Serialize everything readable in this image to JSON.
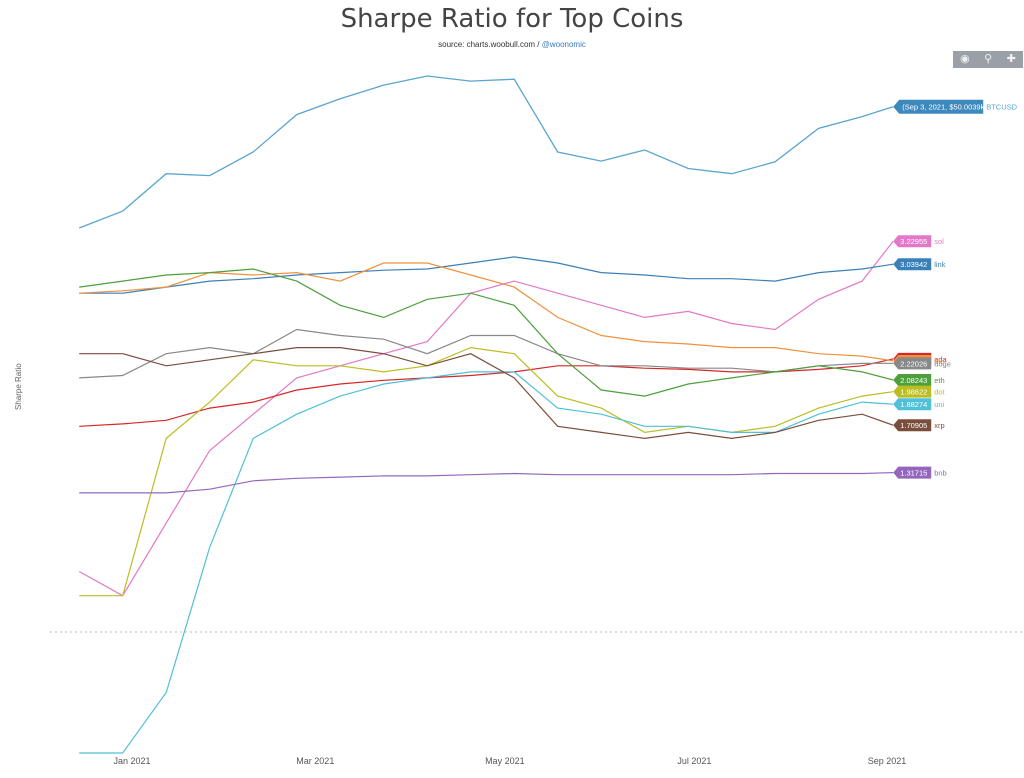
{
  "header": {
    "title": "Sharpe Ratio for Top Coins",
    "source_prefix": "source: charts.woobull.com / ",
    "source_handle": "@woonomic"
  },
  "modebar": {
    "icons": [
      "camera-icon",
      "zoom-icon",
      "pan-icon"
    ]
  },
  "chart_data": {
    "type": "line",
    "title": "Sharpe Ratio for Top Coins",
    "ylabel": "Sharpe Ratio",
    "xlabel": "",
    "x_ticks": [
      "Jan 2021",
      "Mar 2021",
      "May 2021",
      "Jul 2021",
      "Sep 2021"
    ],
    "x": [
      "2020-12-15",
      "2020-12-29",
      "2021-01-12",
      "2021-01-26",
      "2021-02-09",
      "2021-02-23",
      "2021-03-09",
      "2021-03-23",
      "2021-04-06",
      "2021-04-20",
      "2021-05-04",
      "2021-05-18",
      "2021-06-01",
      "2021-06-15",
      "2021-06-29",
      "2021-07-13",
      "2021-07-27",
      "2021-08-10",
      "2021-08-24",
      "2021-09-03"
    ],
    "zero_line": 0,
    "grid": false,
    "btc_price": {
      "name": "BTCUSD",
      "color": "#5aa5cf",
      "tooltip": "(Sep 3, 2021, $50.0039k)",
      "values": [
        19200,
        23500,
        33000,
        32500,
        38500,
        48000,
        52000,
        55500,
        57800,
        56500,
        57000,
        38500,
        36200,
        39000,
        34300,
        33000,
        36000,
        44500,
        47500,
        50004
      ]
    },
    "series": [
      {
        "name": "sol",
        "label": "3.22955",
        "color": "#e378c8",
        "values": [
          0.5,
          0.3,
          0.9,
          1.5,
          1.8,
          2.1,
          2.2,
          2.3,
          2.4,
          2.8,
          2.9,
          2.8,
          2.7,
          2.6,
          2.65,
          2.55,
          2.5,
          2.75,
          2.9,
          3.22955
        ]
      },
      {
        "name": "link",
        "label": "3.03942",
        "color": "#3a80b8",
        "values": [
          2.8,
          2.8,
          2.85,
          2.9,
          2.92,
          2.95,
          2.97,
          2.99,
          3.0,
          3.05,
          3.1,
          3.05,
          2.97,
          2.95,
          2.92,
          2.92,
          2.9,
          2.97,
          3.0,
          3.03942
        ]
      },
      {
        "name": "ada",
        "label": "2.2571",
        "color": "#d62728",
        "values": [
          1.7,
          1.72,
          1.75,
          1.85,
          1.9,
          2.0,
          2.05,
          2.08,
          2.1,
          2.12,
          2.15,
          2.2,
          2.2,
          2.18,
          2.17,
          2.15,
          2.15,
          2.17,
          2.2,
          2.2571
        ]
      },
      {
        "name": "btc",
        "label": "2.2401",
        "color": "#f0913f",
        "values": [
          2.8,
          2.82,
          2.85,
          2.97,
          2.95,
          2.97,
          2.9,
          3.05,
          3.05,
          2.95,
          2.85,
          2.6,
          2.45,
          2.4,
          2.38,
          2.35,
          2.35,
          2.3,
          2.28,
          2.2401
        ]
      },
      {
        "name": "doge",
        "label": "2.22026",
        "color": "#888888",
        "values": [
          2.1,
          2.12,
          2.3,
          2.35,
          2.3,
          2.5,
          2.45,
          2.42,
          2.3,
          2.45,
          2.45,
          2.3,
          2.2,
          2.2,
          2.18,
          2.18,
          2.15,
          2.2,
          2.22,
          2.22026
        ]
      },
      {
        "name": "eth",
        "label": "2.08243",
        "color": "#4e9f3d",
        "values": [
          2.85,
          2.9,
          2.95,
          2.97,
          3.0,
          2.9,
          2.7,
          2.6,
          2.75,
          2.8,
          2.7,
          2.3,
          2.0,
          1.95,
          2.05,
          2.1,
          2.15,
          2.2,
          2.15,
          2.08243
        ]
      },
      {
        "name": "dot",
        "label": "1.98622",
        "color": "#bcbd22",
        "values": [
          0.3,
          0.3,
          1.6,
          1.9,
          2.25,
          2.2,
          2.2,
          2.15,
          2.2,
          2.35,
          2.3,
          1.95,
          1.85,
          1.65,
          1.7,
          1.65,
          1.7,
          1.85,
          1.95,
          1.98622
        ]
      },
      {
        "name": "uni",
        "label": "1.88274",
        "color": "#4fc0d8",
        "values": [
          -1.0,
          -1.0,
          -0.5,
          0.7,
          1.6,
          1.8,
          1.95,
          2.05,
          2.1,
          2.15,
          2.15,
          1.85,
          1.8,
          1.7,
          1.7,
          1.65,
          1.65,
          1.8,
          1.9,
          1.88274
        ]
      },
      {
        "name": "xrp",
        "label": "1.70905",
        "color": "#7b4e3c",
        "values": [
          2.3,
          2.3,
          2.2,
          2.25,
          2.3,
          2.35,
          2.35,
          2.3,
          2.2,
          2.3,
          2.1,
          1.7,
          1.65,
          1.6,
          1.65,
          1.6,
          1.65,
          1.75,
          1.8,
          1.70905
        ]
      },
      {
        "name": "bnb",
        "label": "1.31715",
        "color": "#9467bd",
        "values": [
          1.15,
          1.15,
          1.15,
          1.18,
          1.25,
          1.27,
          1.28,
          1.29,
          1.29,
          1.3,
          1.31,
          1.3,
          1.3,
          1.3,
          1.3,
          1.3,
          1.31,
          1.31,
          1.31,
          1.31715
        ]
      }
    ]
  }
}
